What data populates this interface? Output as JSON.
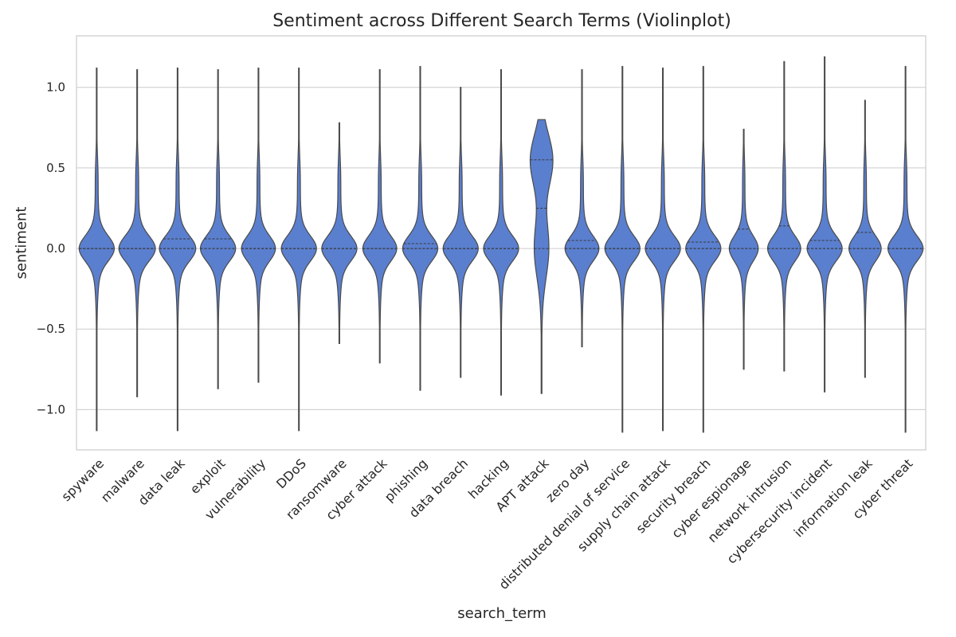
{
  "chart_data": {
    "type": "violin",
    "title": "Sentiment across Different Search Terms (Violinplot)",
    "xlabel": "search_term",
    "ylabel": "sentiment",
    "ylim": [
      -1.25,
      1.32
    ],
    "yticks": [
      "−1.0",
      "−0.5",
      "0.0",
      "0.5",
      "1.0"
    ],
    "ytick_values": [
      -1.0,
      -0.5,
      0.0,
      0.5,
      1.0
    ],
    "grid": "horizontal",
    "color": "#5a7fcf",
    "edge_color": "#4a4a4a",
    "categories": [
      "spyware",
      "malware",
      "data leak",
      "exploit",
      "vulnerability",
      "DDoS",
      "ransomware",
      "cyber attack",
      "phishing",
      "data breach",
      "hacking",
      "APT attack",
      "zero day",
      "distributed denial of service",
      "supply chain attack",
      "security breach",
      "cyber espionage",
      "network intrusion",
      "cybersecurity incident",
      "information leak",
      "cyber threat"
    ],
    "series": [
      {
        "min": -1.13,
        "max": 1.12,
        "median": 0.0,
        "q1": 0.0,
        "q3": 0.0,
        "peak": 0.0,
        "mode_width": 0.85,
        "upper_bulge": 0.55
      },
      {
        "min": -0.92,
        "max": 1.11,
        "median": 0.0,
        "q1": 0.0,
        "q3": 0.0,
        "peak": 0.0,
        "mode_width": 0.88,
        "upper_bulge": 0.5
      },
      {
        "min": -1.13,
        "max": 1.12,
        "median": 0.0,
        "q1": 0.0,
        "q3": 0.06,
        "peak": 0.0,
        "mode_width": 0.88,
        "upper_bulge": 0.5
      },
      {
        "min": -0.87,
        "max": 1.11,
        "median": 0.0,
        "q1": 0.0,
        "q3": 0.06,
        "peak": 0.0,
        "mode_width": 0.85,
        "upper_bulge": 0.5
      },
      {
        "min": -0.83,
        "max": 1.12,
        "median": 0.0,
        "q1": 0.0,
        "q3": 0.0,
        "peak": 0.0,
        "mode_width": 0.82,
        "upper_bulge": 0.5
      },
      {
        "min": -1.13,
        "max": 1.12,
        "median": 0.0,
        "q1": 0.0,
        "q3": 0.0,
        "peak": 0.0,
        "mode_width": 0.85,
        "upper_bulge": 0.5
      },
      {
        "min": -0.59,
        "max": 0.78,
        "median": 0.0,
        "q1": 0.0,
        "q3": 0.0,
        "peak": 0.0,
        "mode_width": 0.85,
        "upper_bulge": 0.45
      },
      {
        "min": -0.71,
        "max": 1.11,
        "median": 0.0,
        "q1": 0.0,
        "q3": 0.0,
        "peak": 0.0,
        "mode_width": 0.82,
        "upper_bulge": 0.5
      },
      {
        "min": -0.88,
        "max": 1.13,
        "median": 0.0,
        "q1": 0.0,
        "q3": 0.03,
        "peak": 0.0,
        "mode_width": 0.85,
        "upper_bulge": 0.5
      },
      {
        "min": -0.8,
        "max": 1.0,
        "median": 0.0,
        "q1": 0.0,
        "q3": 0.0,
        "peak": 0.0,
        "mode_width": 0.85,
        "upper_bulge": 0.5
      },
      {
        "min": -0.91,
        "max": 1.11,
        "median": 0.0,
        "q1": 0.0,
        "q3": 0.0,
        "peak": 0.0,
        "mode_width": 0.85,
        "upper_bulge": 0.5
      },
      {
        "min": -0.9,
        "max": 0.8,
        "median": 0.25,
        "q1": 0.0,
        "q3": 0.55,
        "peak": 0.55,
        "mode_width": 0.55,
        "upper_bulge": 0.0
      },
      {
        "min": -0.61,
        "max": 1.11,
        "median": 0.0,
        "q1": 0.0,
        "q3": 0.05,
        "peak": 0.0,
        "mode_width": 0.82,
        "upper_bulge": 0.5
      },
      {
        "min": -1.14,
        "max": 1.13,
        "median": 0.0,
        "q1": 0.0,
        "q3": 0.0,
        "peak": 0.0,
        "mode_width": 0.85,
        "upper_bulge": 0.55
      },
      {
        "min": -1.13,
        "max": 1.12,
        "median": 0.0,
        "q1": 0.0,
        "q3": 0.0,
        "peak": 0.0,
        "mode_width": 0.85,
        "upper_bulge": 0.5
      },
      {
        "min": -1.14,
        "max": 1.13,
        "median": 0.0,
        "q1": 0.0,
        "q3": 0.04,
        "peak": 0.0,
        "mode_width": 0.85,
        "upper_bulge": 0.5
      },
      {
        "min": -0.75,
        "max": 0.74,
        "median": 0.0,
        "q1": 0.0,
        "q3": 0.12,
        "peak": 0.0,
        "mode_width": 0.7,
        "upper_bulge": 0.55
      },
      {
        "min": -0.76,
        "max": 1.16,
        "median": 0.0,
        "q1": 0.0,
        "q3": 0.14,
        "peak": 0.0,
        "mode_width": 0.8,
        "upper_bulge": 0.5
      },
      {
        "min": -0.89,
        "max": 1.19,
        "median": 0.0,
        "q1": 0.0,
        "q3": 0.05,
        "peak": 0.0,
        "mode_width": 0.85,
        "upper_bulge": 0.55
      },
      {
        "min": -0.8,
        "max": 0.92,
        "median": 0.0,
        "q1": 0.0,
        "q3": 0.1,
        "peak": 0.0,
        "mode_width": 0.78,
        "upper_bulge": 0.55
      },
      {
        "min": -1.14,
        "max": 1.13,
        "median": 0.0,
        "q1": 0.0,
        "q3": 0.0,
        "peak": 0.0,
        "mode_width": 0.85,
        "upper_bulge": 0.5
      }
    ]
  }
}
